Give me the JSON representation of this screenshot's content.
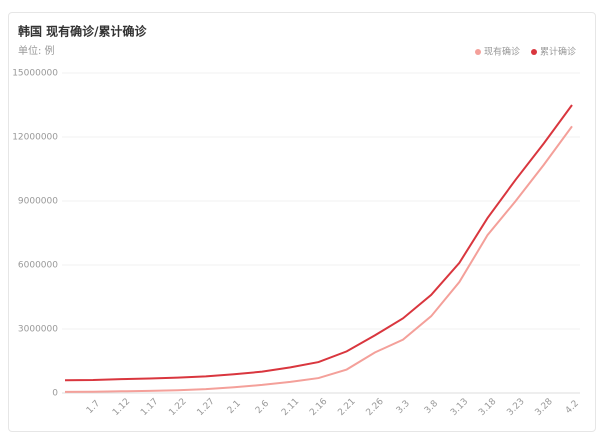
{
  "chart_data": {
    "type": "line",
    "title": "韩国 现有确诊/累计确诊",
    "subtitle": "单位: 例",
    "categories": [
      null,
      "1.7",
      "1.12",
      "1.17",
      "1.22",
      "1.27",
      "2.1",
      "2.6",
      "2.11",
      "2.16",
      "2.21",
      "2.26",
      "3.3",
      "3.8",
      "3.13",
      "3.18",
      "3.23",
      "3.28",
      "4.2"
    ],
    "series": [
      {
        "name": "现有确诊",
        "color": "#f4a09a",
        "values": [
          50000,
          60000,
          80000,
          100000,
          130000,
          180000,
          270000,
          380000,
          520000,
          700000,
          1100000,
          1900000,
          2500000,
          3600000,
          5200000,
          7400000,
          9000000,
          10700000,
          12500000
        ]
      },
      {
        "name": "累计确诊",
        "color": "#d9363e",
        "values": [
          600000,
          610000,
          650000,
          680000,
          720000,
          780000,
          880000,
          1000000,
          1200000,
          1450000,
          1950000,
          2700000,
          3500000,
          4600000,
          6100000,
          8200000,
          10000000,
          11700000,
          13500000
        ]
      }
    ],
    "ylim": [
      0,
      15000000
    ],
    "yticks": [
      0,
      3000000,
      6000000,
      9000000,
      12000000,
      15000000
    ],
    "grid": true,
    "legend": "top-right"
  }
}
